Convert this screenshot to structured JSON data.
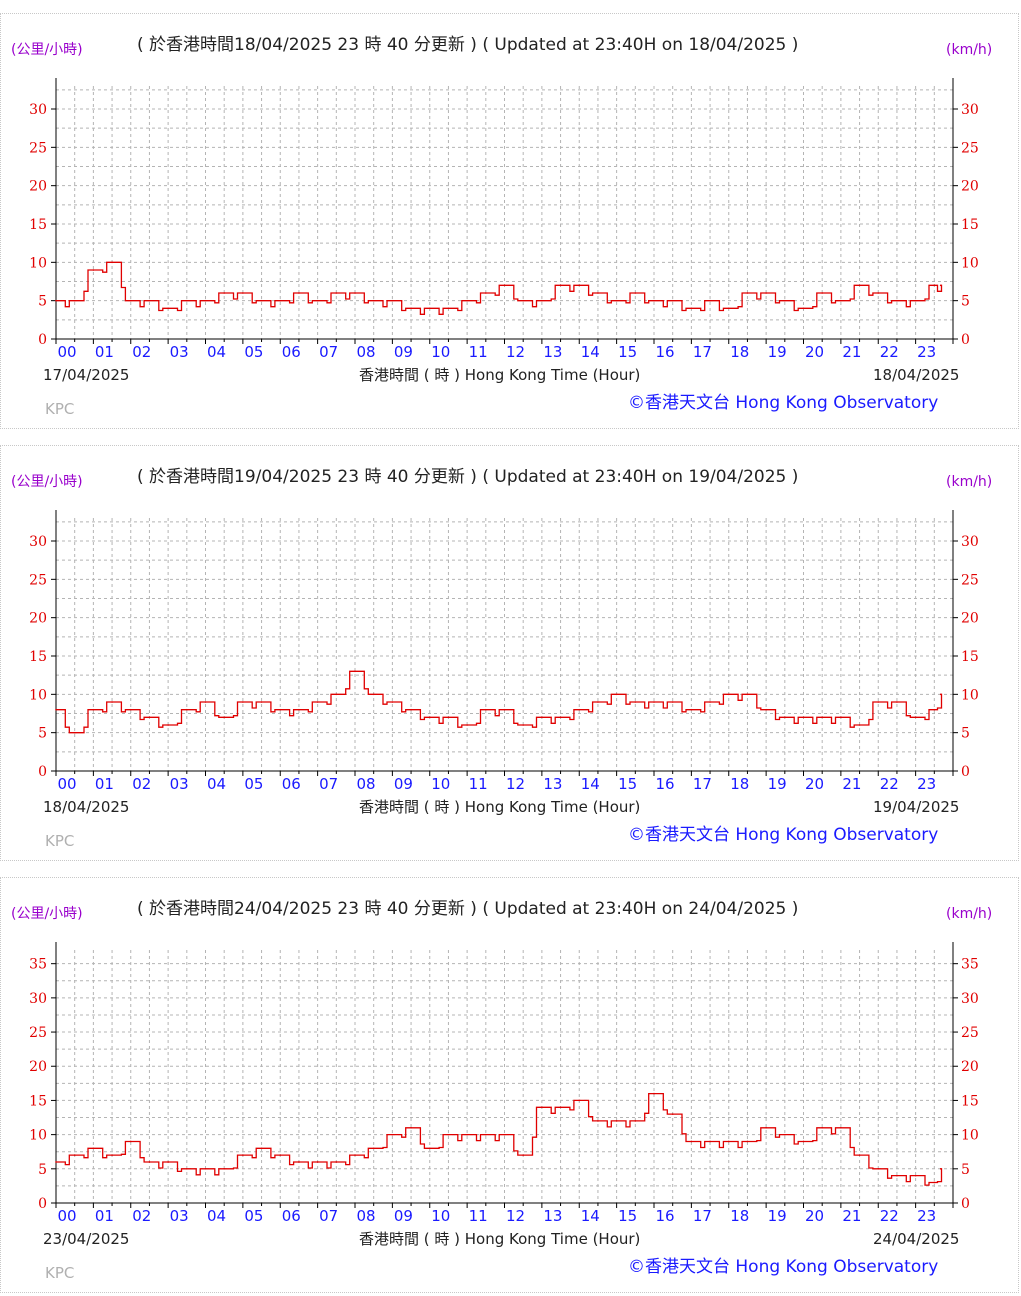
{
  "charts": [
    {
      "unit_left": "(公里/小時)",
      "unit_right": "(km/h)",
      "title": "( 於香港時間18/04/2025 23 時 40 分更新 ) ( Updated at 23:40H on 18/04/2025 )",
      "date_left": "17/04/2025",
      "date_right": "18/04/2025",
      "xlabel": "香港時間 ( 時 ) Hong Kong Time (Hour)",
      "station": "KPC",
      "credit": "©香港天文台 Hong Kong Observatory"
    },
    {
      "unit_left": "(公里/小時)",
      "unit_right": "(km/h)",
      "title": "( 於香港時間19/04/2025 23 時 40 分更新 ) ( Updated at 23:40H on 19/04/2025 )",
      "date_left": "18/04/2025",
      "date_right": "19/04/2025",
      "xlabel": "香港時間 ( 時 ) Hong Kong Time (Hour)",
      "station": "KPC",
      "credit": "©香港天文台 Hong Kong Observatory"
    },
    {
      "unit_left": "(公里/小時)",
      "unit_right": "(km/h)",
      "title": "( 於香港時間24/04/2025 23 時 40 分更新 ) ( Updated at 23:40H on 24/04/2025 )",
      "date_left": "23/04/2025",
      "date_right": "24/04/2025",
      "xlabel": "香港時間 ( 時 ) Hong Kong Time (Hour)",
      "station": "KPC",
      "credit": "©香港天文台 Hong Kong Observatory"
    }
  ],
  "colors": {
    "line": "#e00000",
    "y_tick": "#e00000",
    "x_tick": "#1a1aff",
    "unit": "#9900cc",
    "credit": "#1a1aff",
    "station": "#b0b0b0",
    "grid": "#b4b4b4"
  },
  "chart_data": [
    {
      "type": "line",
      "hour_labels": [
        "00",
        "01",
        "02",
        "03",
        "04",
        "05",
        "06",
        "07",
        "08",
        "09",
        "10",
        "11",
        "12",
        "13",
        "14",
        "15",
        "16",
        "17",
        "18",
        "19",
        "20",
        "21",
        "22",
        "23"
      ],
      "y_ticks": [
        0,
        5,
        10,
        15,
        20,
        25,
        30
      ],
      "ylim": [
        0,
        33
      ],
      "x": [
        0,
        0.5,
        1,
        1.5,
        2,
        2.5,
        3,
        3.5,
        4,
        4.5,
        5,
        5.5,
        6,
        6.5,
        7,
        7.5,
        8,
        8.5,
        9,
        9.5,
        10,
        10.5,
        11,
        11.5,
        12,
        12.5,
        13,
        13.5,
        14,
        14.5,
        15,
        15.5,
        16,
        16.5,
        17,
        17.5,
        18,
        18.5,
        19,
        19.5,
        20,
        20.5,
        21,
        21.5,
        22,
        22.5,
        23,
        23.5,
        23.67
      ],
      "values": [
        5,
        5,
        9,
        10,
        5,
        5,
        4,
        5,
        5,
        6,
        6,
        5,
        5,
        6,
        5,
        6,
        6,
        5,
        5,
        4,
        4,
        4,
        5,
        6,
        7,
        5,
        5,
        7,
        7,
        6,
        5,
        6,
        5,
        5,
        4,
        5,
        4,
        6,
        6,
        5,
        4,
        6,
        5,
        7,
        6,
        5,
        5,
        7,
        7
      ]
    },
    {
      "type": "line",
      "hour_labels": [
        "00",
        "01",
        "02",
        "03",
        "04",
        "05",
        "06",
        "07",
        "08",
        "09",
        "10",
        "11",
        "12",
        "13",
        "14",
        "15",
        "16",
        "17",
        "18",
        "19",
        "20",
        "21",
        "22",
        "23"
      ],
      "y_ticks": [
        0,
        5,
        10,
        15,
        20,
        25,
        30
      ],
      "ylim": [
        0,
        33
      ],
      "x": [
        0,
        0.5,
        1,
        1.5,
        2,
        2.5,
        3,
        3.5,
        4,
        4.5,
        5,
        5.5,
        6,
        6.5,
        7,
        7.5,
        8,
        8.5,
        9,
        9.5,
        10,
        10.5,
        11,
        11.5,
        12,
        12.5,
        13,
        13.5,
        14,
        14.5,
        15,
        15.5,
        16,
        16.5,
        17,
        17.5,
        18,
        18.5,
        19,
        19.5,
        20,
        20.5,
        21,
        21.5,
        22,
        22.5,
        23,
        23.5,
        23.67
      ],
      "values": [
        8,
        5,
        8,
        9,
        8,
        7,
        6,
        8,
        9,
        7,
        9,
        9,
        8,
        8,
        9,
        10,
        13,
        10,
        9,
        8,
        7,
        7,
        6,
        8,
        8,
        6,
        7,
        7,
        8,
        9,
        10,
        9,
        9,
        9,
        8,
        9,
        10,
        10,
        8,
        7,
        7,
        7,
        7,
        6,
        9,
        9,
        7,
        8,
        10
      ]
    },
    {
      "type": "line",
      "hour_labels": [
        "00",
        "01",
        "02",
        "03",
        "04",
        "05",
        "06",
        "07",
        "08",
        "09",
        "10",
        "11",
        "12",
        "13",
        "14",
        "15",
        "16",
        "17",
        "18",
        "19",
        "20",
        "21",
        "22",
        "23"
      ],
      "y_ticks": [
        0,
        5,
        10,
        15,
        20,
        25,
        30,
        35
      ],
      "ylim": [
        0,
        37
      ],
      "x": [
        0,
        0.5,
        1,
        1.5,
        2,
        2.5,
        3,
        3.5,
        4,
        4.5,
        5,
        5.5,
        6,
        6.5,
        7,
        7.5,
        8,
        8.5,
        9,
        9.5,
        10,
        10.5,
        11,
        11.5,
        12,
        12.5,
        13,
        13.5,
        14,
        14.5,
        15,
        15.5,
        16,
        16.5,
        17,
        17.5,
        18,
        18.5,
        19,
        19.5,
        20,
        20.5,
        21,
        21.5,
        22,
        22.5,
        23,
        23.5,
        23.67
      ],
      "values": [
        6,
        7,
        8,
        7,
        9,
        6,
        6,
        5,
        5,
        5,
        7,
        8,
        7,
        6,
        6,
        6,
        7,
        8,
        10,
        11,
        8,
        10,
        10,
        10,
        10,
        7,
        14,
        14,
        15,
        12,
        12,
        12,
        16,
        13,
        9,
        9,
        9,
        9,
        11,
        10,
        9,
        11,
        11,
        7,
        5,
        4,
        4,
        3,
        5
      ]
    }
  ]
}
